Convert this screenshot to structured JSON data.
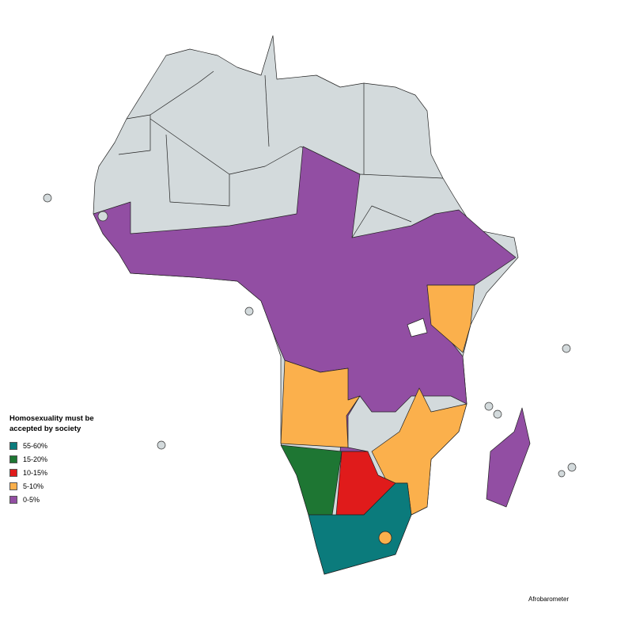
{
  "legend": {
    "title": "Homosexuality must be accepted by society",
    "items": [
      {
        "label": "55-60%",
        "color": "#0b7b7c"
      },
      {
        "label": "15-20%",
        "color": "#1e7633"
      },
      {
        "label": "10-15%",
        "color": "#e01b1b"
      },
      {
        "label": "5-10%",
        "color": "#fbb04c"
      },
      {
        "label": "0-5%",
        "color": "#924ea3"
      }
    ]
  },
  "source": "Afrobarometer"
}
